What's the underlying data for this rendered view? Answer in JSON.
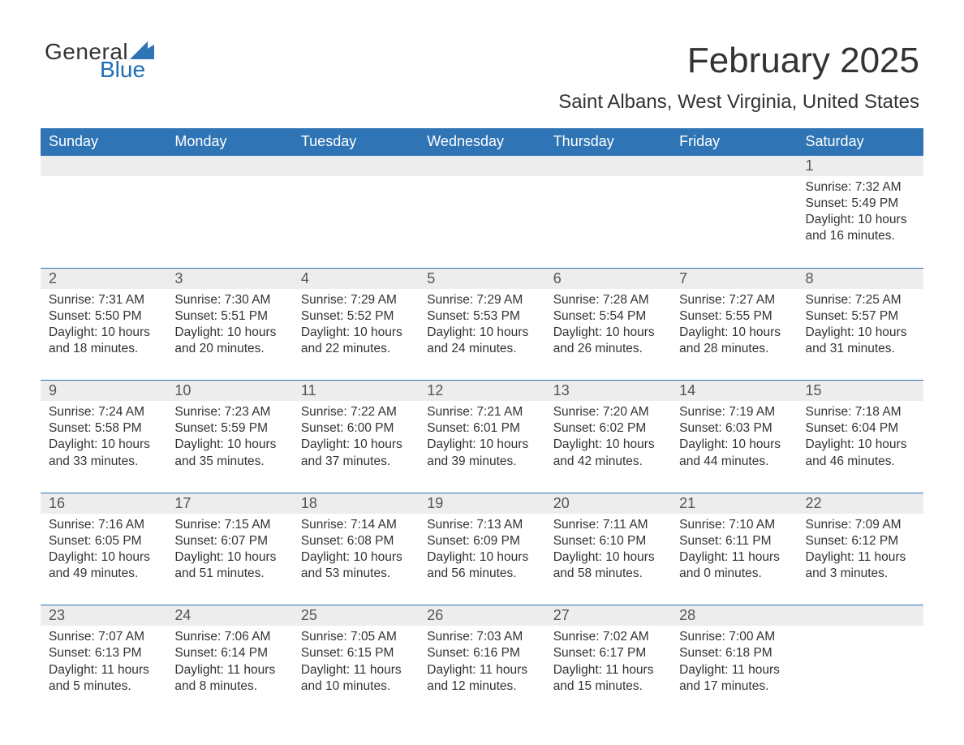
{
  "logo": {
    "text_general": "General",
    "text_blue": "Blue",
    "sail_color": "#2f74b5"
  },
  "title": "February 2025",
  "subtitle": "Saint Albans, West Virginia, United States",
  "colors": {
    "header_bg": "#2f74b5",
    "header_text": "#ffffff",
    "daynum_bg": "#ededed",
    "page_bg": "#ffffff",
    "body_text": "#333333",
    "separator": "#2f74b5"
  },
  "days_of_week": [
    "Sunday",
    "Monday",
    "Tuesday",
    "Wednesday",
    "Thursday",
    "Friday",
    "Saturday"
  ],
  "weeks": [
    [
      null,
      null,
      null,
      null,
      null,
      null,
      {
        "n": "1",
        "sunrise": "Sunrise: 7:32 AM",
        "sunset": "Sunset: 5:49 PM",
        "daylight1": "Daylight: 10 hours",
        "daylight2": "and 16 minutes."
      }
    ],
    [
      {
        "n": "2",
        "sunrise": "Sunrise: 7:31 AM",
        "sunset": "Sunset: 5:50 PM",
        "daylight1": "Daylight: 10 hours",
        "daylight2": "and 18 minutes."
      },
      {
        "n": "3",
        "sunrise": "Sunrise: 7:30 AM",
        "sunset": "Sunset: 5:51 PM",
        "daylight1": "Daylight: 10 hours",
        "daylight2": "and 20 minutes."
      },
      {
        "n": "4",
        "sunrise": "Sunrise: 7:29 AM",
        "sunset": "Sunset: 5:52 PM",
        "daylight1": "Daylight: 10 hours",
        "daylight2": "and 22 minutes."
      },
      {
        "n": "5",
        "sunrise": "Sunrise: 7:29 AM",
        "sunset": "Sunset: 5:53 PM",
        "daylight1": "Daylight: 10 hours",
        "daylight2": "and 24 minutes."
      },
      {
        "n": "6",
        "sunrise": "Sunrise: 7:28 AM",
        "sunset": "Sunset: 5:54 PM",
        "daylight1": "Daylight: 10 hours",
        "daylight2": "and 26 minutes."
      },
      {
        "n": "7",
        "sunrise": "Sunrise: 7:27 AM",
        "sunset": "Sunset: 5:55 PM",
        "daylight1": "Daylight: 10 hours",
        "daylight2": "and 28 minutes."
      },
      {
        "n": "8",
        "sunrise": "Sunrise: 7:25 AM",
        "sunset": "Sunset: 5:57 PM",
        "daylight1": "Daylight: 10 hours",
        "daylight2": "and 31 minutes."
      }
    ],
    [
      {
        "n": "9",
        "sunrise": "Sunrise: 7:24 AM",
        "sunset": "Sunset: 5:58 PM",
        "daylight1": "Daylight: 10 hours",
        "daylight2": "and 33 minutes."
      },
      {
        "n": "10",
        "sunrise": "Sunrise: 7:23 AM",
        "sunset": "Sunset: 5:59 PM",
        "daylight1": "Daylight: 10 hours",
        "daylight2": "and 35 minutes."
      },
      {
        "n": "11",
        "sunrise": "Sunrise: 7:22 AM",
        "sunset": "Sunset: 6:00 PM",
        "daylight1": "Daylight: 10 hours",
        "daylight2": "and 37 minutes."
      },
      {
        "n": "12",
        "sunrise": "Sunrise: 7:21 AM",
        "sunset": "Sunset: 6:01 PM",
        "daylight1": "Daylight: 10 hours",
        "daylight2": "and 39 minutes."
      },
      {
        "n": "13",
        "sunrise": "Sunrise: 7:20 AM",
        "sunset": "Sunset: 6:02 PM",
        "daylight1": "Daylight: 10 hours",
        "daylight2": "and 42 minutes."
      },
      {
        "n": "14",
        "sunrise": "Sunrise: 7:19 AM",
        "sunset": "Sunset: 6:03 PM",
        "daylight1": "Daylight: 10 hours",
        "daylight2": "and 44 minutes."
      },
      {
        "n": "15",
        "sunrise": "Sunrise: 7:18 AM",
        "sunset": "Sunset: 6:04 PM",
        "daylight1": "Daylight: 10 hours",
        "daylight2": "and 46 minutes."
      }
    ],
    [
      {
        "n": "16",
        "sunrise": "Sunrise: 7:16 AM",
        "sunset": "Sunset: 6:05 PM",
        "daylight1": "Daylight: 10 hours",
        "daylight2": "and 49 minutes."
      },
      {
        "n": "17",
        "sunrise": "Sunrise: 7:15 AM",
        "sunset": "Sunset: 6:07 PM",
        "daylight1": "Daylight: 10 hours",
        "daylight2": "and 51 minutes."
      },
      {
        "n": "18",
        "sunrise": "Sunrise: 7:14 AM",
        "sunset": "Sunset: 6:08 PM",
        "daylight1": "Daylight: 10 hours",
        "daylight2": "and 53 minutes."
      },
      {
        "n": "19",
        "sunrise": "Sunrise: 7:13 AM",
        "sunset": "Sunset: 6:09 PM",
        "daylight1": "Daylight: 10 hours",
        "daylight2": "and 56 minutes."
      },
      {
        "n": "20",
        "sunrise": "Sunrise: 7:11 AM",
        "sunset": "Sunset: 6:10 PM",
        "daylight1": "Daylight: 10 hours",
        "daylight2": "and 58 minutes."
      },
      {
        "n": "21",
        "sunrise": "Sunrise: 7:10 AM",
        "sunset": "Sunset: 6:11 PM",
        "daylight1": "Daylight: 11 hours",
        "daylight2": "and 0 minutes."
      },
      {
        "n": "22",
        "sunrise": "Sunrise: 7:09 AM",
        "sunset": "Sunset: 6:12 PM",
        "daylight1": "Daylight: 11 hours",
        "daylight2": "and 3 minutes."
      }
    ],
    [
      {
        "n": "23",
        "sunrise": "Sunrise: 7:07 AM",
        "sunset": "Sunset: 6:13 PM",
        "daylight1": "Daylight: 11 hours",
        "daylight2": "and 5 minutes."
      },
      {
        "n": "24",
        "sunrise": "Sunrise: 7:06 AM",
        "sunset": "Sunset: 6:14 PM",
        "daylight1": "Daylight: 11 hours",
        "daylight2": "and 8 minutes."
      },
      {
        "n": "25",
        "sunrise": "Sunrise: 7:05 AM",
        "sunset": "Sunset: 6:15 PM",
        "daylight1": "Daylight: 11 hours",
        "daylight2": "and 10 minutes."
      },
      {
        "n": "26",
        "sunrise": "Sunrise: 7:03 AM",
        "sunset": "Sunset: 6:16 PM",
        "daylight1": "Daylight: 11 hours",
        "daylight2": "and 12 minutes."
      },
      {
        "n": "27",
        "sunrise": "Sunrise: 7:02 AM",
        "sunset": "Sunset: 6:17 PM",
        "daylight1": "Daylight: 11 hours",
        "daylight2": "and 15 minutes."
      },
      {
        "n": "28",
        "sunrise": "Sunrise: 7:00 AM",
        "sunset": "Sunset: 6:18 PM",
        "daylight1": "Daylight: 11 hours",
        "daylight2": "and 17 minutes."
      },
      null
    ]
  ]
}
